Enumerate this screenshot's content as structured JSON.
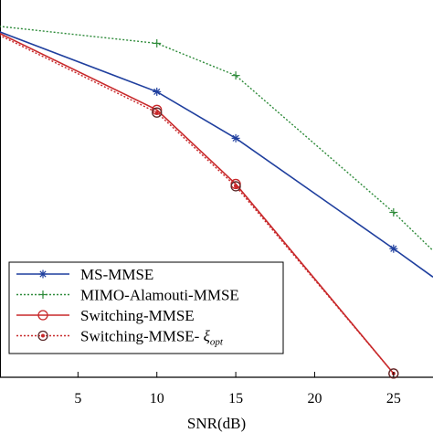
{
  "chart_data": {
    "type": "line",
    "xlabel": "SNR(dB)",
    "ylabel": "",
    "title": "",
    "xlim": [
      0,
      27.5
    ],
    "ylim": [
      0,
      1
    ],
    "x_ticks": [
      5,
      10,
      15,
      20,
      25
    ],
    "x_tick_labels": [
      "5",
      "10",
      "15",
      "20",
      "25"
    ],
    "legend_position": "bottom-left",
    "grid": false,
    "series": [
      {
        "name": "MS-MMSE",
        "color": "#1f3f9e",
        "dash": "solid",
        "marker": "star",
        "x": [
          0,
          10,
          15,
          25,
          27.5
        ],
        "y": [
          0.914,
          0.755,
          0.632,
          0.34,
          0.265
        ]
      },
      {
        "name": "MIMO-Alamouti-MMSE",
        "color": "#2e8b3a",
        "dash": "dotted",
        "marker": "plus",
        "x": [
          0,
          10,
          15,
          25,
          27.5
        ],
        "y": [
          0.928,
          0.883,
          0.798,
          0.436,
          0.335
        ]
      },
      {
        "name": "Switching-MMSE",
        "color": "#c8282a",
        "dash": "solid",
        "marker": "circle",
        "x": [
          0,
          10,
          15,
          25
        ],
        "y": [
          0.91,
          0.707,
          0.511,
          0.01
        ]
      },
      {
        "name_text": "Switching-MMSE- ",
        "name_symbol": "ξ",
        "name_subscript": "opt",
        "color": "#c8282a",
        "dash": "dotted",
        "marker": "circle-dot",
        "x": [
          0,
          10,
          15,
          25
        ],
        "y": [
          0.905,
          0.7,
          0.505,
          0.01
        ]
      }
    ]
  }
}
